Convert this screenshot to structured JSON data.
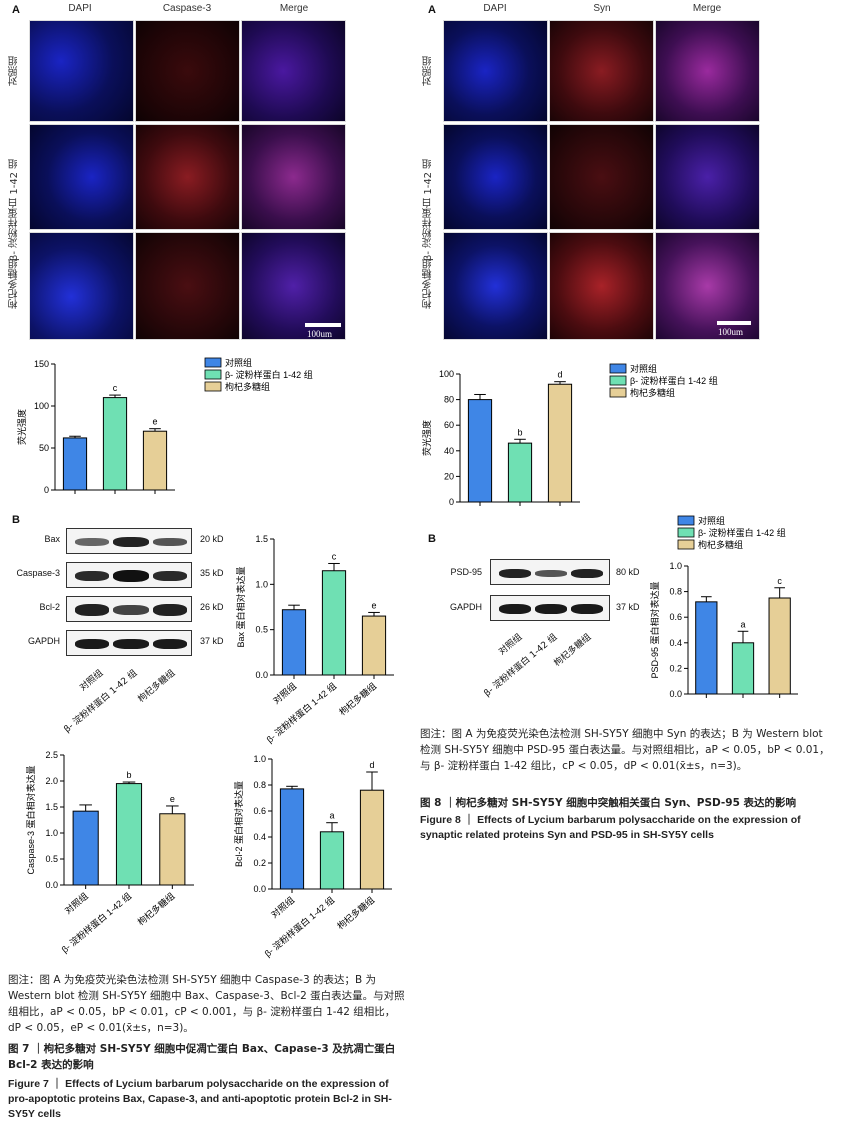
{
  "fig7": {
    "panel_a": "A",
    "panel_b": "B",
    "col_headers": [
      "DAPI",
      "Caspase-3",
      "Merge"
    ],
    "row_labels": [
      "对照组",
      "β- 淀粉样蛋白 1-42 组",
      "枸杞多糖组"
    ],
    "scale_label": "100um",
    "wb_labels": [
      "Bax",
      "Caspase-3",
      "Bcl-2",
      "GAPDH"
    ],
    "wb_kd": [
      "20 kD",
      "35 kD",
      "26 kD",
      "37 kD"
    ],
    "wb_xlabels": [
      "对照组",
      "β- 淀粉样蛋白 1-42 组",
      "枸杞多糖组"
    ],
    "caption_note_1": "图注：图 A 为免疫荧光染色法检测 SH-SY5Y 细胞中 Caspase-3 的表达；B 为 Western blot 检测 SH-SY5Y 细胞中 Bax、Caspase-3、Bcl-2 蛋白表达量。与对照组相比，aP < 0.05，bP < 0.01，cP < 0.001，与 β- 淀粉样蛋白 1-42 组相比，dP < 0.05，eP < 0.01(x̄±s，n=3)。",
    "title_cn": "图 7 ｜枸杞多糖对 SH-SY5Y 细胞中促凋亡蛋白 Bax、Capase-3 及抗凋亡蛋白 Bcl-2 表达的影响",
    "title_en": "Figure 7 ｜ Effects of Lycium barbarum polysaccharide on the expression of pro-apoptotic proteins Bax, Capase-3, and anti-apoptotic protein Bcl-2 in SH-SY5Y cells"
  },
  "fig8": {
    "panel_a": "A",
    "panel_b": "B",
    "col_headers": [
      "DAPI",
      "Syn",
      "Merge"
    ],
    "row_labels": [
      "对照组",
      "β- 淀粉样蛋白 1-42 组",
      "枸杞多糖组"
    ],
    "scale_label": "100um",
    "wb_labels": [
      "PSD-95",
      "GAPDH"
    ],
    "wb_kd": [
      "80 kD",
      "37 kD"
    ],
    "wb_xlabels": [
      "对照组",
      "β- 淀粉样蛋白 1-42 组",
      "枸杞多糖组"
    ],
    "caption_note_1": "图注：图 A 为免疫荧光染色法检测 SH-SY5Y 细胞中 Syn 的表达；B 为 Western blot 检测 SH-SY5Y 细胞中 PSD-95 蛋白表达量。与对照组相比，aP < 0.05，bP < 0.01，与 β- 淀粉样蛋白 1-42 组比，cP < 0.05，dP < 0.01(x̄±s，n=3)。",
    "title_cn": "图 8 ｜枸杞多糖对 SH-SY5Y 细胞中突触相关蛋白 Syn、PSD-95 表达的影响",
    "title_en": "Figure 8 ｜ Effects of Lycium barbarum polysaccharide on the expression of synaptic related proteins Syn and PSD-95 in SH-SY5Y cells"
  },
  "colors": {
    "blue": "#3f86e6",
    "green": "#6fe0b3",
    "tan": "#e6cf97"
  },
  "chart_data": [
    {
      "id": "fig7-fluor",
      "type": "bar",
      "categories": [
        "对照组",
        "β- 淀粉样蛋白 1-42 组",
        "枸杞多糖组"
      ],
      "values": [
        62,
        110,
        70
      ],
      "errors": [
        2,
        3,
        3
      ],
      "sig": [
        "",
        "c",
        "e"
      ],
      "ylabel": "荧光强度",
      "ylim": [
        0,
        150
      ],
      "ticks": [
        0,
        50,
        100,
        150
      ],
      "legend": [
        "对照组",
        "β- 淀粉样蛋白 1-42 组",
        "枸杞多糖组"
      ]
    },
    {
      "id": "fig7-bax",
      "type": "bar",
      "categories": [
        "对照组",
        "β- 淀粉样蛋白 1-42 组",
        "枸杞多糖组"
      ],
      "values": [
        0.72,
        1.15,
        0.65
      ],
      "errors": [
        0.05,
        0.08,
        0.04
      ],
      "sig": [
        "",
        "c",
        "e"
      ],
      "ylabel": "Bax 蛋白相对表达量",
      "ylim": [
        0,
        1.5
      ],
      "ticks": [
        0,
        0.5,
        1.0,
        1.5
      ]
    },
    {
      "id": "fig7-casp",
      "type": "bar",
      "categories": [
        "对照组",
        "β- 淀粉样蛋白 1-42 组",
        "枸杞多糖组"
      ],
      "values": [
        1.42,
        1.95,
        1.37
      ],
      "errors": [
        0.12,
        0.03,
        0.15
      ],
      "sig": [
        "",
        "b",
        "e"
      ],
      "ylabel": "Caspase-3 蛋白相对表达量",
      "ylim": [
        0,
        2.5
      ],
      "ticks": [
        0,
        0.5,
        1.0,
        1.5,
        2.0,
        2.5
      ]
    },
    {
      "id": "fig7-bcl2",
      "type": "bar",
      "categories": [
        "对照组",
        "β- 淀粉样蛋白 1-42 组",
        "枸杞多糖组"
      ],
      "values": [
        0.77,
        0.44,
        0.76
      ],
      "errors": [
        0.02,
        0.07,
        0.14
      ],
      "sig": [
        "",
        "a",
        "d"
      ],
      "ylabel": "Bcl-2 蛋白相对表达量",
      "ylim": [
        0,
        1.0
      ],
      "ticks": [
        0,
        0.2,
        0.4,
        0.6,
        0.8,
        1.0
      ]
    },
    {
      "id": "fig8-fluor",
      "type": "bar",
      "categories": [
        "对照组",
        "β- 淀粉样蛋白 1-42 组",
        "枸杞多糖组"
      ],
      "values": [
        80,
        46,
        92
      ],
      "errors": [
        4,
        3,
        2
      ],
      "sig": [
        "",
        "b",
        "d"
      ],
      "ylabel": "荧光强度",
      "ylim": [
        0,
        100
      ],
      "ticks": [
        0,
        20,
        40,
        60,
        80,
        100
      ],
      "legend": [
        "对照组",
        "β- 淀粉样蛋白 1-42 组",
        "枸杞多糖组"
      ]
    },
    {
      "id": "fig8-psd",
      "type": "bar",
      "categories": [
        "对照组",
        "β- 淀粉样蛋白 1-42 组",
        "枸杞多糖组"
      ],
      "values": [
        0.72,
        0.4,
        0.75
      ],
      "errors": [
        0.04,
        0.09,
        0.08
      ],
      "sig": [
        "",
        "a",
        "c"
      ],
      "ylabel": "PSD-95 蛋白相对表达量",
      "ylim": [
        0,
        1.0
      ],
      "ticks": [
        0,
        0.2,
        0.4,
        0.6,
        0.8,
        1.0
      ],
      "legend": [
        "对照组",
        "β- 淀粉样蛋白 1-42 组",
        "枸杞多糖组"
      ]
    }
  ]
}
